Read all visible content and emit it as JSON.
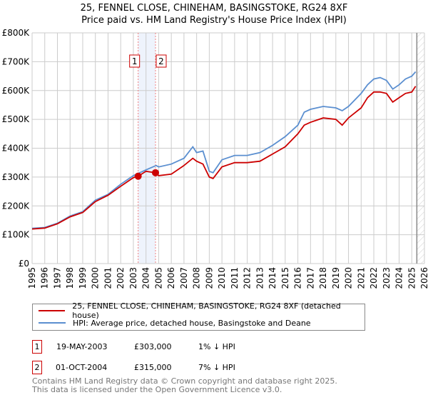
{
  "chart_data": {
    "type": "line",
    "title": "25, FENNEL CLOSE, CHINEHAM, BASINGSTOKE, RG24 8XF",
    "subtitle": "Price paid vs. HM Land Registry's House Price Index (HPI)",
    "xlim": [
      1995,
      2026
    ],
    "ylim": [
      0,
      800000
    ],
    "x_ticks": [
      "1995",
      "1996",
      "1997",
      "1998",
      "1999",
      "2000",
      "2001",
      "2002",
      "2003",
      "2004",
      "2005",
      "2006",
      "2007",
      "2008",
      "2009",
      "2010",
      "2011",
      "2012",
      "2013",
      "2014",
      "2015",
      "2016",
      "2017",
      "2018",
      "2019",
      "2020",
      "2021",
      "2022",
      "2023",
      "2024",
      "2025",
      "2026"
    ],
    "y_ticks": [
      {
        "v": 0,
        "l": "£0"
      },
      {
        "v": 100000,
        "l": "£100K"
      },
      {
        "v": 200000,
        "l": "£200K"
      },
      {
        "v": 300000,
        "l": "£300K"
      },
      {
        "v": 400000,
        "l": "£400K"
      },
      {
        "v": 500000,
        "l": "£500K"
      },
      {
        "v": 600000,
        "l": "£600K"
      },
      {
        "v": 700000,
        "l": "£700K"
      },
      {
        "v": 800000,
        "l": "£800K"
      }
    ],
    "grid": true,
    "series": [
      {
        "name": "25, FENNEL CLOSE, CHINEHAM, BASINGSTOKE, RG24 8XF (detached house)",
        "color": "#cc0000",
        "x": [
          1995,
          1996,
          1997,
          1998,
          1999,
          2000,
          2001,
          2002,
          2003,
          2003.38,
          2004,
          2004.75,
          2005,
          2006,
          2007,
          2007.7,
          2008,
          2008.5,
          2009,
          2009.3,
          2010,
          2011,
          2012,
          2013,
          2014,
          2015,
          2016,
          2016.5,
          2017,
          2018,
          2019,
          2019.5,
          2020,
          2021,
          2021.5,
          2022,
          2022.5,
          2023,
          2023.5,
          2024,
          2024.5,
          2025,
          2025.3
        ],
        "y": [
          120000,
          123000,
          138000,
          162000,
          177000,
          215000,
          237000,
          268000,
          298000,
          303000,
          320000,
          315000,
          305000,
          310000,
          340000,
          365000,
          355000,
          345000,
          300000,
          295000,
          335000,
          350000,
          350000,
          355000,
          380000,
          405000,
          450000,
          480000,
          490000,
          505000,
          500000,
          480000,
          505000,
          540000,
          575000,
          595000,
          595000,
          590000,
          560000,
          575000,
          590000,
          595000,
          615000
        ]
      },
      {
        "name": "HPI: Average price, detached house, Basingstoke and Deane",
        "color": "#5b8fd0",
        "x": [
          1995,
          1996,
          1997,
          1998,
          1999,
          2000,
          2001,
          2002,
          2003,
          2004,
          2004.8,
          2005,
          2006,
          2007,
          2007.7,
          2008,
          2008.5,
          2009,
          2009.3,
          2010,
          2011,
          2012,
          2013,
          2014,
          2015,
          2016,
          2016.5,
          2017,
          2018,
          2019,
          2019.5,
          2020,
          2021,
          2021.5,
          2022,
          2022.5,
          2023,
          2023.5,
          2024,
          2024.5,
          2025,
          2025.3
        ],
        "y": [
          122000,
          125000,
          140000,
          165000,
          180000,
          220000,
          240000,
          275000,
          305000,
          325000,
          340000,
          335000,
          345000,
          365000,
          405000,
          385000,
          390000,
          320000,
          315000,
          360000,
          375000,
          375000,
          385000,
          410000,
          440000,
          480000,
          525000,
          535000,
          545000,
          540000,
          530000,
          545000,
          590000,
          620000,
          640000,
          645000,
          635000,
          605000,
          620000,
          640000,
          650000,
          665000
        ]
      }
    ],
    "sales": [
      {
        "id": "1",
        "x": 2003.38,
        "y": 303000
      },
      {
        "id": "2",
        "x": 2004.75,
        "y": 315000
      }
    ],
    "forecast_start": 2025.4
  },
  "transactions": [
    {
      "id": "1",
      "date": "19-MAY-2003",
      "price": "£303,000",
      "hpi": "1% ↓ HPI"
    },
    {
      "id": "2",
      "date": "01-OCT-2004",
      "price": "£315,000",
      "hpi": "7% ↓ HPI"
    }
  ],
  "footer": [
    "Contains HM Land Registry data © Crown copyright and database right 2025.",
    "This data is licensed under the Open Government Licence v3.0."
  ]
}
